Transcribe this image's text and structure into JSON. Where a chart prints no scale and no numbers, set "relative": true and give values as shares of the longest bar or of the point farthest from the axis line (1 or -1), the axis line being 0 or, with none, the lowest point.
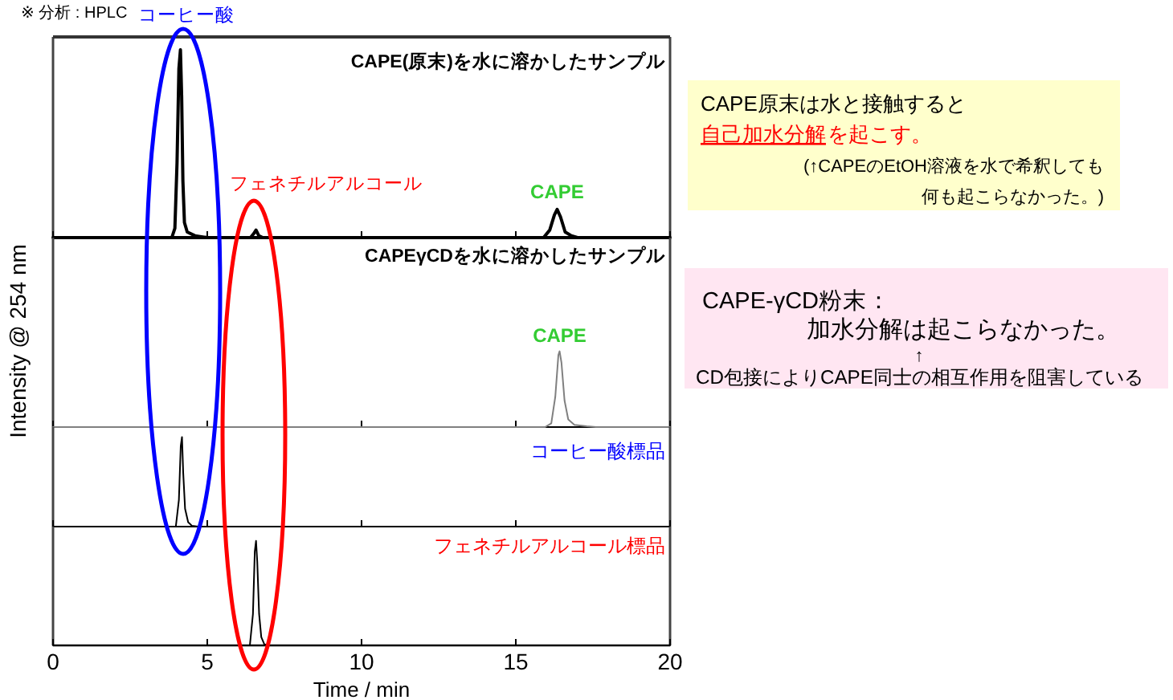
{
  "chart_data": [
    {
      "type": "line",
      "title": "CAPE(原末)を水に溶かしたサンプル",
      "relative": true,
      "xlim": [
        0,
        20
      ],
      "xticks": [
        0,
        5,
        10,
        15,
        20
      ],
      "tick_labels": false,
      "x": [
        0,
        3.85,
        3.95,
        4.02,
        4.08,
        4.13,
        4.17,
        4.21,
        4.26,
        4.35,
        4.6,
        5.0,
        6.4,
        6.5,
        6.58,
        6.67,
        6.8,
        15.9,
        16.1,
        16.25,
        16.34,
        16.45,
        16.6,
        16.8,
        17.0,
        20
      ],
      "series": [
        {
          "color": "#000000",
          "values": [
            0,
            0,
            0.05,
            0.4,
            0.9,
            1,
            0.75,
            0.3,
            0.08,
            0.03,
            0.01,
            0,
            0,
            0.02,
            0.04,
            0.01,
            0,
            0,
            0.04,
            0.12,
            0.15,
            0.11,
            0.03,
            0.01,
            0,
            0
          ]
        }
      ],
      "annotations": [
        "※ 分析 : HPLC",
        "コーヒー酸",
        "フェネチルアルコール",
        {
          "text": "CAPE",
          "x": 16.34,
          "y": 0.15
        }
      ]
    },
    {
      "type": "line",
      "title": "CAPEγCDを水に溶かしたサンプル",
      "ylabel": "Intensity @ 254 nm",
      "relative": true,
      "xlim": [
        0,
        20
      ],
      "xticks": [
        0,
        5,
        10,
        15,
        20
      ],
      "tick_labels": false,
      "x": [
        0,
        15.95,
        16.15,
        16.28,
        16.38,
        16.42,
        16.48,
        16.58,
        16.7,
        16.9,
        17.3,
        17.6,
        20
      ],
      "series": [
        {
          "color": "#808080",
          "values": [
            0,
            0,
            0.05,
            0.4,
            0.95,
            1,
            0.85,
            0.35,
            0.1,
            0.03,
            0.01,
            0,
            0
          ]
        }
      ],
      "annotations": [
        {
          "text": "CAPE",
          "x": 16.42,
          "y": 1
        }
      ]
    },
    {
      "type": "line",
      "title": "コーヒー酸標品",
      "relative": true,
      "xlim": [
        0,
        20
      ],
      "xticks": [
        0,
        5,
        10,
        15,
        20
      ],
      "tick_labels": false,
      "x": [
        0,
        3.98,
        4.08,
        4.14,
        4.18,
        4.22,
        4.28,
        4.38,
        4.5,
        4.7,
        20
      ],
      "series": [
        {
          "color": "#000000",
          "values": [
            0,
            0,
            0.3,
            0.9,
            1,
            0.6,
            0.2,
            0.05,
            0.01,
            0,
            0
          ]
        }
      ]
    },
    {
      "type": "line",
      "title": "フェネチルアルコール標品",
      "xlabel": "Time / min",
      "relative": true,
      "xlim": [
        0,
        20
      ],
      "xticks": [
        0,
        5,
        10,
        15,
        20
      ],
      "tick_labels": "x",
      "x": [
        0,
        6.38,
        6.48,
        6.54,
        6.58,
        6.62,
        6.68,
        6.75,
        6.85,
        7.0,
        20
      ],
      "series": [
        {
          "color": "#000000",
          "values": [
            0,
            0,
            0.3,
            0.9,
            1,
            0.8,
            0.3,
            0.08,
            0.01,
            0,
            0
          ]
        }
      ]
    },
    {
      "type": "other",
      "annotations": [
        "CAPE原末は水と接触すると",
        "自己加水分解",
        "を起こす。",
        "(↑CAPEのEtOH溶液を水で希釈しても",
        "何も起こらなかった。)"
      ]
    },
    {
      "type": "other",
      "annotations": [
        "CAPE-γCD粉末：",
        "加水分解は起こらなかった。",
        "↑",
        "CD包接によりCAPE同士の相互作用を阻害している"
      ]
    }
  ]
}
